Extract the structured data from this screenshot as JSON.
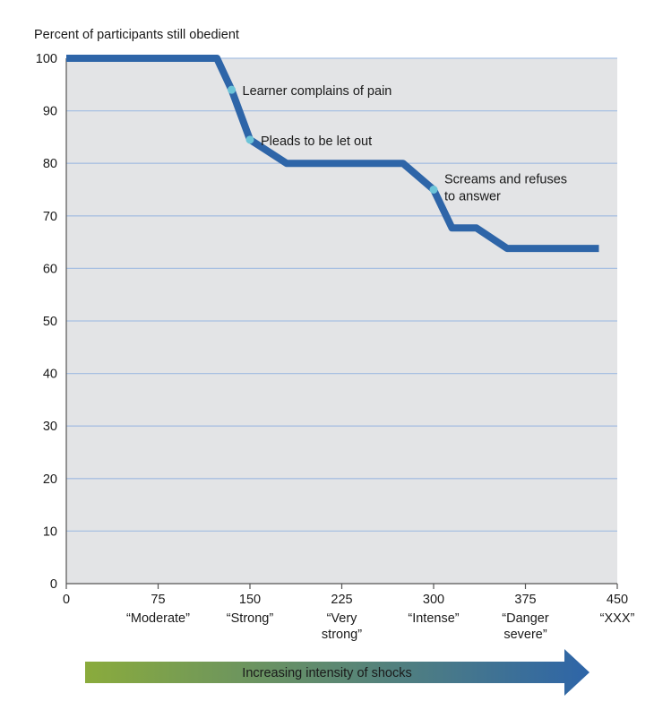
{
  "chart_data": {
    "type": "line",
    "ylabel": "Percent of participants still obedient",
    "xlabel": "",
    "xlim": [
      0,
      450
    ],
    "ylim": [
      0,
      100
    ],
    "grid": true,
    "y_ticks": [
      0,
      10,
      20,
      30,
      40,
      50,
      60,
      70,
      80,
      90,
      100
    ],
    "x_ticks": [
      {
        "value": 0,
        "label": "0",
        "desc": []
      },
      {
        "value": 75,
        "label": "75",
        "desc": [
          "“Moderate”"
        ]
      },
      {
        "value": 150,
        "label": "150",
        "desc": [
          "“Strong”"
        ]
      },
      {
        "value": 225,
        "label": "225",
        "desc": [
          "“Very",
          "strong”"
        ]
      },
      {
        "value": 300,
        "label": "300",
        "desc": [
          "“Intense”"
        ]
      },
      {
        "value": 375,
        "label": "375",
        "desc": [
          "“Danger",
          "severe”"
        ]
      },
      {
        "value": 450,
        "label": "450",
        "desc": [
          "“XXX”"
        ]
      }
    ],
    "series": [
      {
        "name": "Percent still obedient",
        "points": [
          [
            0,
            100
          ],
          [
            123,
            100
          ],
          [
            135,
            94
          ],
          [
            150,
            84.5
          ],
          [
            180,
            80
          ],
          [
            275,
            80
          ],
          [
            300,
            75
          ],
          [
            315,
            67.7
          ],
          [
            335,
            67.7
          ],
          [
            360,
            63.8
          ],
          [
            435,
            63.8
          ]
        ]
      }
    ],
    "annotations": [
      {
        "x": 135,
        "y": 94,
        "lines": [
          "Learner complains of pain"
        ]
      },
      {
        "x": 150,
        "y": 84.5,
        "lines": [
          "Pleads to be let out"
        ]
      },
      {
        "x": 300,
        "y": 75,
        "lines": [
          "Screams and refuses",
          "to answer"
        ]
      }
    ],
    "arrow_label": "Increasing intensity of shocks",
    "colors": {
      "line": "#2e65a8",
      "marker": "#6cc4d8",
      "plot_bg": "#e3e4e6",
      "grid": "#a8c0e2",
      "arrow_start": "#8aab3c",
      "arrow_end": "#2e65a8"
    }
  }
}
